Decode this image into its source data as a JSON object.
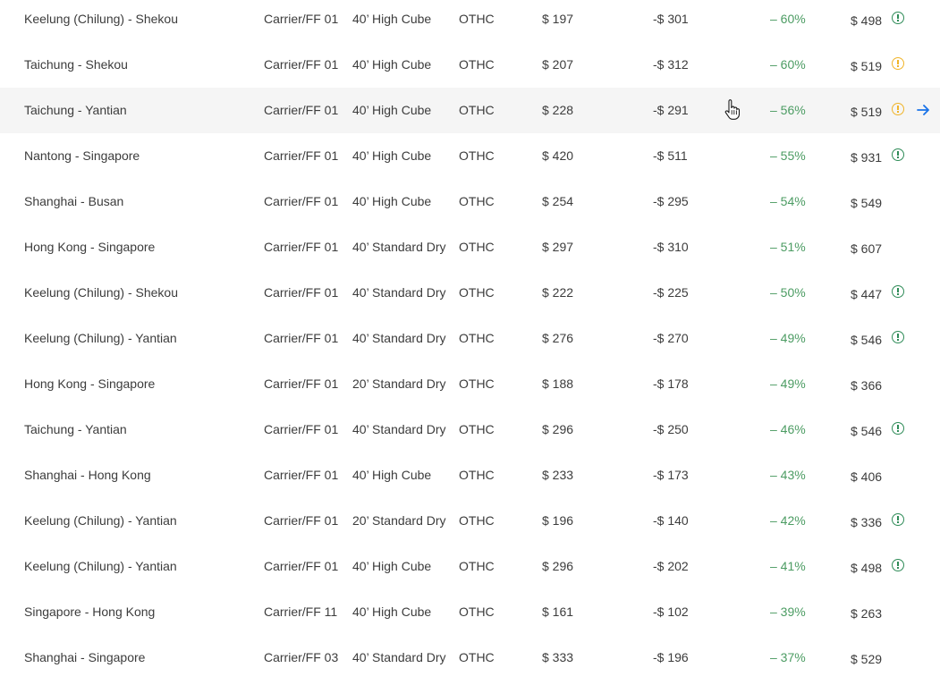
{
  "rows": [
    {
      "route": "Keelung (Chilung) - Shekou",
      "carrier": "Carrier/FF 01",
      "equipment": "40’ High Cube",
      "charge": "OTHC",
      "rate": "$ 197",
      "diff": "-$ 301",
      "pct": "– 60%",
      "total": "$ 498",
      "alert": "green"
    },
    {
      "route": "Taichung - Shekou",
      "carrier": "Carrier/FF 01",
      "equipment": "40’ High Cube",
      "charge": "OTHC",
      "rate": "$ 207",
      "diff": "-$ 312",
      "pct": "– 60%",
      "total": "$ 519",
      "alert": "orange"
    },
    {
      "route": "Taichung - Yantian",
      "carrier": "Carrier/FF 01",
      "equipment": "40’ High Cube",
      "charge": "OTHC",
      "rate": "$ 228",
      "diff": "-$ 291",
      "pct": "– 56%",
      "total": "$ 519",
      "alert": "orange",
      "hover": true
    },
    {
      "route": "Nantong - Singapore",
      "carrier": "Carrier/FF 01",
      "equipment": "40’ High Cube",
      "charge": "OTHC",
      "rate": "$ 420",
      "diff": "-$ 511",
      "pct": "– 55%",
      "total": "$ 931",
      "alert": "green"
    },
    {
      "route": "Shanghai - Busan",
      "carrier": "Carrier/FF 01",
      "equipment": "40’ High Cube",
      "charge": "OTHC",
      "rate": "$ 254",
      "diff": "-$ 295",
      "pct": "– 54%",
      "total": "$ 549",
      "alert": ""
    },
    {
      "route": "Hong Kong - Singapore",
      "carrier": "Carrier/FF 01",
      "equipment": "40’ Standard Dry",
      "charge": "OTHC",
      "rate": "$ 297",
      "diff": "-$ 310",
      "pct": "– 51%",
      "total": "$ 607",
      "alert": ""
    },
    {
      "route": "Keelung (Chilung) - Shekou",
      "carrier": "Carrier/FF 01",
      "equipment": "40’ Standard Dry",
      "charge": "OTHC",
      "rate": "$ 222",
      "diff": "-$ 225",
      "pct": "– 50%",
      "total": "$ 447",
      "alert": "green"
    },
    {
      "route": "Keelung (Chilung) - Yantian",
      "carrier": "Carrier/FF 01",
      "equipment": "40’ Standard Dry",
      "charge": "OTHC",
      "rate": "$ 276",
      "diff": "-$ 270",
      "pct": "– 49%",
      "total": "$ 546",
      "alert": "green"
    },
    {
      "route": "Hong Kong - Singapore",
      "carrier": "Carrier/FF 01",
      "equipment": "20’ Standard Dry",
      "charge": "OTHC",
      "rate": "$ 188",
      "diff": "-$ 178",
      "pct": "– 49%",
      "total": "$ 366",
      "alert": ""
    },
    {
      "route": "Taichung - Yantian",
      "carrier": "Carrier/FF 01",
      "equipment": "40’ Standard Dry",
      "charge": "OTHC",
      "rate": "$ 296",
      "diff": "-$ 250",
      "pct": "– 46%",
      "total": "$ 546",
      "alert": "green"
    },
    {
      "route": "Shanghai - Hong Kong",
      "carrier": "Carrier/FF 01",
      "equipment": "40’ High Cube",
      "charge": "OTHC",
      "rate": "$ 233",
      "diff": "-$ 173",
      "pct": "– 43%",
      "total": "$ 406",
      "alert": ""
    },
    {
      "route": "Keelung (Chilung) - Yantian",
      "carrier": "Carrier/FF 01",
      "equipment": "20’ Standard Dry",
      "charge": "OTHC",
      "rate": "$ 196",
      "diff": "-$ 140",
      "pct": "– 42%",
      "total": "$ 336",
      "alert": "green"
    },
    {
      "route": "Keelung (Chilung) - Yantian",
      "carrier": "Carrier/FF 01",
      "equipment": "40’ High Cube",
      "charge": "OTHC",
      "rate": "$ 296",
      "diff": "-$ 202",
      "pct": "– 41%",
      "total": "$ 498",
      "alert": "green"
    },
    {
      "route": "Singapore - Hong Kong",
      "carrier": "Carrier/FF 11",
      "equipment": "40’ High Cube",
      "charge": "OTHC",
      "rate": "$ 161",
      "diff": "-$ 102",
      "pct": "– 39%",
      "total": "$ 263",
      "alert": ""
    },
    {
      "route": "Shanghai - Singapore",
      "carrier": "Carrier/FF 03",
      "equipment": "40’ Standard Dry",
      "charge": "OTHC",
      "rate": "$ 333",
      "diff": "-$ 196",
      "pct": "– 37%",
      "total": "$ 529",
      "alert": ""
    }
  ],
  "colors": {
    "percent_text": "#4c9c63",
    "alert_green": "#2e8b57",
    "alert_orange": "#f0b429",
    "arrow_blue": "#1a73e8",
    "hover_row": "#f5f5f5"
  },
  "icons": {
    "alert": "exclamation-circle-icon",
    "row_action": "arrow-right-icon",
    "cursor": "hand-pointer-cursor"
  }
}
